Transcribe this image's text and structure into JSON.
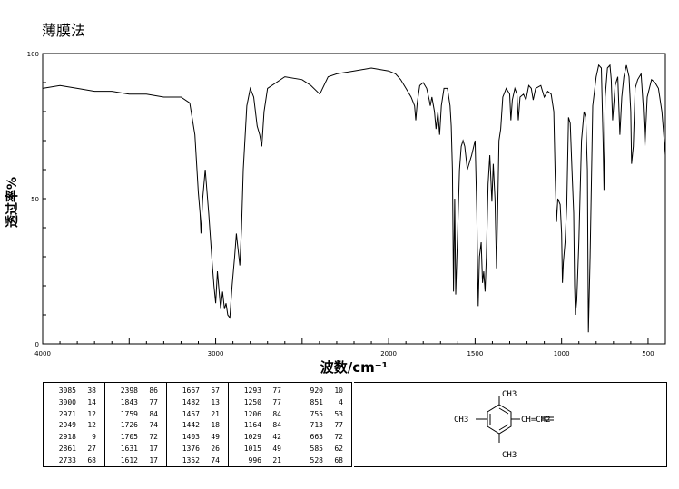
{
  "title": "薄膜法",
  "chart_data": {
    "type": "line",
    "xlabel": "波数/cm⁻¹",
    "ylabel": "透过率%",
    "xlim": [
      4000,
      400
    ],
    "ylim": [
      0,
      100
    ],
    "xticks": [
      {
        "v": 4000,
        "label": "4000"
      },
      {
        "v": 3000,
        "label": "3000"
      },
      {
        "v": 2000,
        "label": "2000"
      },
      {
        "v": 1500,
        "label": "1500"
      },
      {
        "v": 1000,
        "label": "1000"
      },
      {
        "v": 500,
        "label": "500"
      }
    ],
    "yticks": [
      {
        "v": 0,
        "label": "0"
      },
      {
        "v": 50,
        "label": "50"
      },
      {
        "v": 100,
        "label": "100"
      }
    ],
    "series": [
      {
        "x": [
          4000,
          3900,
          3800,
          3700,
          3600,
          3500,
          3400,
          3300,
          3200,
          3150,
          3120,
          3100,
          3090,
          3085,
          3075,
          3060,
          3040,
          3020,
          3010,
          3000,
          2990,
          2980,
          2971,
          2960,
          2949,
          2940,
          2930,
          2918,
          2905,
          2890,
          2880,
          2875,
          2860,
          2850,
          2840,
          2820,
          2800,
          2780,
          2760,
          2745,
          2733,
          2720,
          2700,
          2600,
          2500,
          2450,
          2398,
          2350,
          2300,
          2200,
          2100,
          2000,
          1960,
          1930,
          1900,
          1870,
          1850,
          1843,
          1835,
          1820,
          1800,
          1780,
          1765,
          1759,
          1750,
          1735,
          1726,
          1715,
          1705,
          1695,
          1680,
          1660,
          1645,
          1638,
          1631,
          1625,
          1618,
          1612,
          1600,
          1590,
          1580,
          1570,
          1560,
          1545,
          1520,
          1500,
          1490,
          1482,
          1475,
          1465,
          1457,
          1450,
          1442,
          1435,
          1425,
          1415,
          1403,
          1395,
          1385,
          1376,
          1370,
          1362,
          1352,
          1340,
          1320,
          1300,
          1293,
          1285,
          1270,
          1258,
          1250,
          1240,
          1220,
          1206,
          1190,
          1175,
          1164,
          1150,
          1120,
          1100,
          1080,
          1060,
          1045,
          1037,
          1029,
          1022,
          1015,
          1008,
          1000,
          995,
          990,
          980,
          970,
          960,
          950,
          940,
          930,
          925,
          920,
          912,
          900,
          885,
          870,
          860,
          851,
          845,
          835,
          820,
          800,
          785,
          770,
          760,
          755,
          748,
          735,
          720,
          713,
          705,
          690,
          675,
          663,
          652,
          640,
          625,
          610,
          600,
          595,
          585,
          575,
          560,
          540,
          528,
          518,
          505,
          480,
          460,
          440,
          420,
          400
        ],
        "y": [
          88,
          89,
          88,
          87,
          87,
          86,
          86,
          85,
          85,
          83,
          72,
          52,
          45,
          38,
          50,
          60,
          45,
          28,
          20,
          14,
          25,
          18,
          12,
          18,
          12,
          14,
          10,
          9,
          20,
          30,
          38,
          35,
          27,
          40,
          60,
          82,
          88,
          85,
          75,
          72,
          68,
          80,
          88,
          92,
          91,
          89,
          86,
          92,
          93,
          94,
          95,
          94,
          93,
          91,
          88,
          85,
          82,
          77,
          83,
          89,
          90,
          88,
          84,
          82,
          85,
          80,
          74,
          80,
          72,
          82,
          88,
          88,
          82,
          75,
          60,
          18,
          50,
          17,
          40,
          60,
          68,
          70,
          68,
          60,
          65,
          70,
          45,
          13,
          30,
          35,
          21,
          25,
          18,
          30,
          55,
          65,
          49,
          62,
          50,
          26,
          45,
          70,
          74,
          85,
          88,
          86,
          77,
          84,
          88,
          86,
          77,
          85,
          86,
          84,
          89,
          88,
          84,
          88,
          89,
          85,
          87,
          86,
          80,
          58,
          42,
          50,
          49,
          48,
          38,
          21,
          28,
          35,
          48,
          78,
          76,
          60,
          45,
          20,
          10,
          15,
          35,
          70,
          80,
          78,
          60,
          4,
          30,
          82,
          92,
          96,
          95,
          70,
          53,
          85,
          95,
          96,
          91,
          77,
          89,
          92,
          72,
          85,
          92,
          96,
          92,
          80,
          62,
          68,
          88,
          91,
          93,
          82,
          68,
          85,
          91,
          90,
          88,
          80,
          65
        ]
      }
    ]
  },
  "peak_table": [
    [
      [
        "3085",
        "38"
      ],
      [
        "3000",
        "14"
      ],
      [
        "2971",
        "12"
      ],
      [
        "2949",
        "12"
      ],
      [
        "2918",
        "9"
      ],
      [
        "2861",
        "27"
      ],
      [
        "2733",
        "68"
      ]
    ],
    [
      [
        "2398",
        "86"
      ],
      [
        "1843",
        "77"
      ],
      [
        "1759",
        "84"
      ],
      [
        "1726",
        "74"
      ],
      [
        "1705",
        "72"
      ],
      [
        "1631",
        "17"
      ],
      [
        "1612",
        "17"
      ]
    ],
    [
      [
        "1667",
        "57"
      ],
      [
        "1482",
        "13"
      ],
      [
        "1457",
        "21"
      ],
      [
        "1442",
        "18"
      ],
      [
        "1403",
        "49"
      ],
      [
        "1376",
        "26"
      ],
      [
        "1352",
        "74"
      ]
    ],
    [
      [
        "1293",
        "77"
      ],
      [
        "1250",
        "77"
      ],
      [
        "1206",
        "84"
      ],
      [
        "1164",
        "84"
      ],
      [
        "1029",
        "42"
      ],
      [
        "1015",
        "49"
      ],
      [
        "996",
        "21"
      ]
    ],
    [
      [
        "920",
        "10"
      ],
      [
        "851",
        "4"
      ],
      [
        "755",
        "53"
      ],
      [
        "713",
        "77"
      ],
      [
        "663",
        "72"
      ],
      [
        "585",
        "62"
      ],
      [
        "528",
        "68"
      ]
    ]
  ],
  "structure": {
    "top_group": "CH3",
    "left_group": "CH3",
    "bottom_group": "CH3",
    "right_group": "CH=CH2"
  }
}
